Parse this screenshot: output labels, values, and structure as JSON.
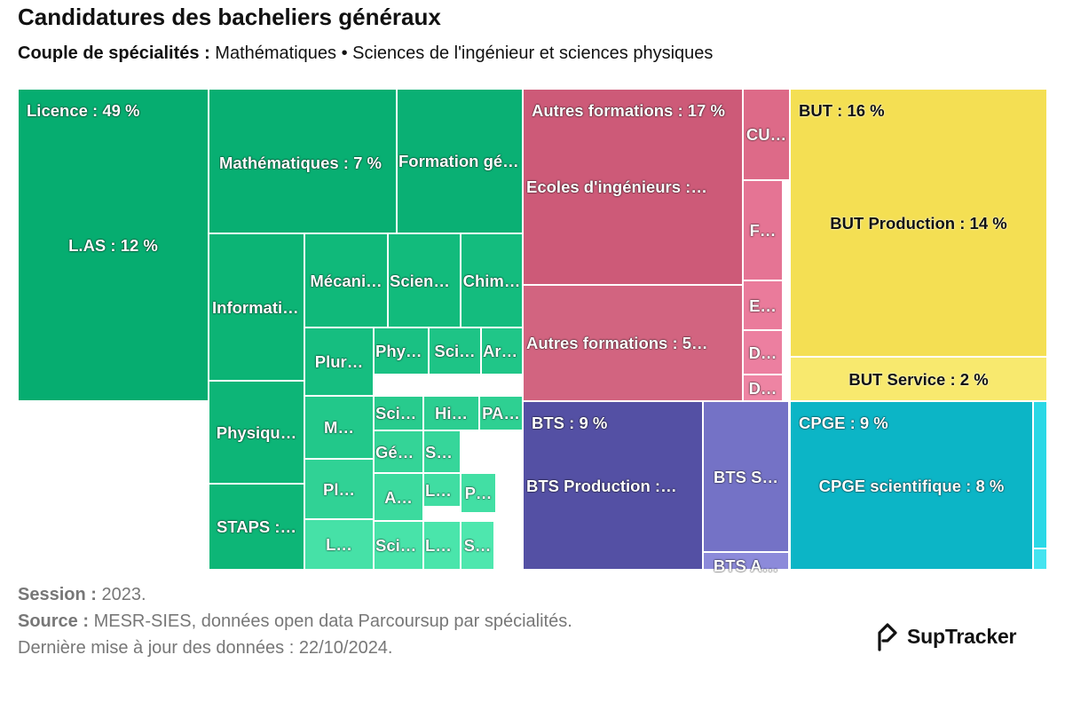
{
  "title": "Candidatures des bacheliers généraux",
  "subtitle": {
    "label": "Couple de spécialités :",
    "value": " Mathématiques • Sciences de l'ingénieur et sciences physiques"
  },
  "footer": {
    "session_label": "Session :",
    "session_value": " 2023.",
    "source_label": "Source :",
    "source_value": " MESR-SIES, données open data Parcoursup par spécialités.",
    "update": "Dernière mise à jour des données : 22/10/2024."
  },
  "brand": {
    "name": "SupTracker",
    "icon": "suptracker-logo-icon"
  },
  "colors": {
    "licence": "#06AD70",
    "autres": "#CD5A78",
    "but": "#F4DF53",
    "bts": "#5450A4",
    "cpge": "#0CB5C6"
  },
  "chart_data": {
    "type": "treemap",
    "groups": [
      {
        "name": "Licence",
        "label": "Licence : 49 %",
        "value": 49,
        "children": [
          {
            "label": "L.AS : 12 %",
            "value": 12
          },
          {
            "label": "Mathématiques : 7 %",
            "value": 7
          },
          {
            "label": "Formation généra…"
          },
          {
            "label": "Informatiq…"
          },
          {
            "label": "Physiqu…"
          },
          {
            "label": "STAPS :…"
          },
          {
            "label": "Mécani…"
          },
          {
            "label": "Scienc…"
          },
          {
            "label": "Chim…"
          },
          {
            "label": "Plur…"
          },
          {
            "label": "Phys…"
          },
          {
            "label": "Sci…"
          },
          {
            "label": "Art…"
          },
          {
            "label": "M…"
          },
          {
            "label": "Scie…"
          },
          {
            "label": "Hi…"
          },
          {
            "label": "PA…"
          },
          {
            "label": "Pl…"
          },
          {
            "label": "Géni…"
          },
          {
            "label": "Sci…"
          },
          {
            "label": "A…"
          },
          {
            "label": "LE…"
          },
          {
            "label": "P…"
          },
          {
            "label": "L…"
          },
          {
            "label": "Scie…"
          },
          {
            "label": "La…"
          },
          {
            "label": "S…"
          }
        ]
      },
      {
        "name": "Autres formations",
        "label": "Autres formations : 17 %",
        "value": 17,
        "children": [
          {
            "label": "Ecoles d'ingénieurs :…"
          },
          {
            "label": "Autres formations : 5…"
          },
          {
            "label": "CU…"
          },
          {
            "label": "F…"
          },
          {
            "label": "E…"
          },
          {
            "label": "D…"
          },
          {
            "label": "D…"
          }
        ]
      },
      {
        "name": "BUT",
        "label": "BUT : 16 %",
        "value": 16,
        "children": [
          {
            "label": "BUT Production : 14 %",
            "value": 14
          },
          {
            "label": "BUT Service : 2 %",
            "value": 2
          }
        ]
      },
      {
        "name": "BTS",
        "label": "BTS : 9 %",
        "value": 9,
        "children": [
          {
            "label": "BTS Production :…"
          },
          {
            "label": "BTS S…"
          },
          {
            "label": "BTS A…"
          }
        ]
      },
      {
        "name": "CPGE",
        "label": "CPGE : 9 %",
        "value": 9,
        "children": [
          {
            "label": "CPGE scientifique : 8 %",
            "value": 8
          },
          {
            "label": ""
          },
          {
            "label": ""
          }
        ]
      }
    ]
  }
}
